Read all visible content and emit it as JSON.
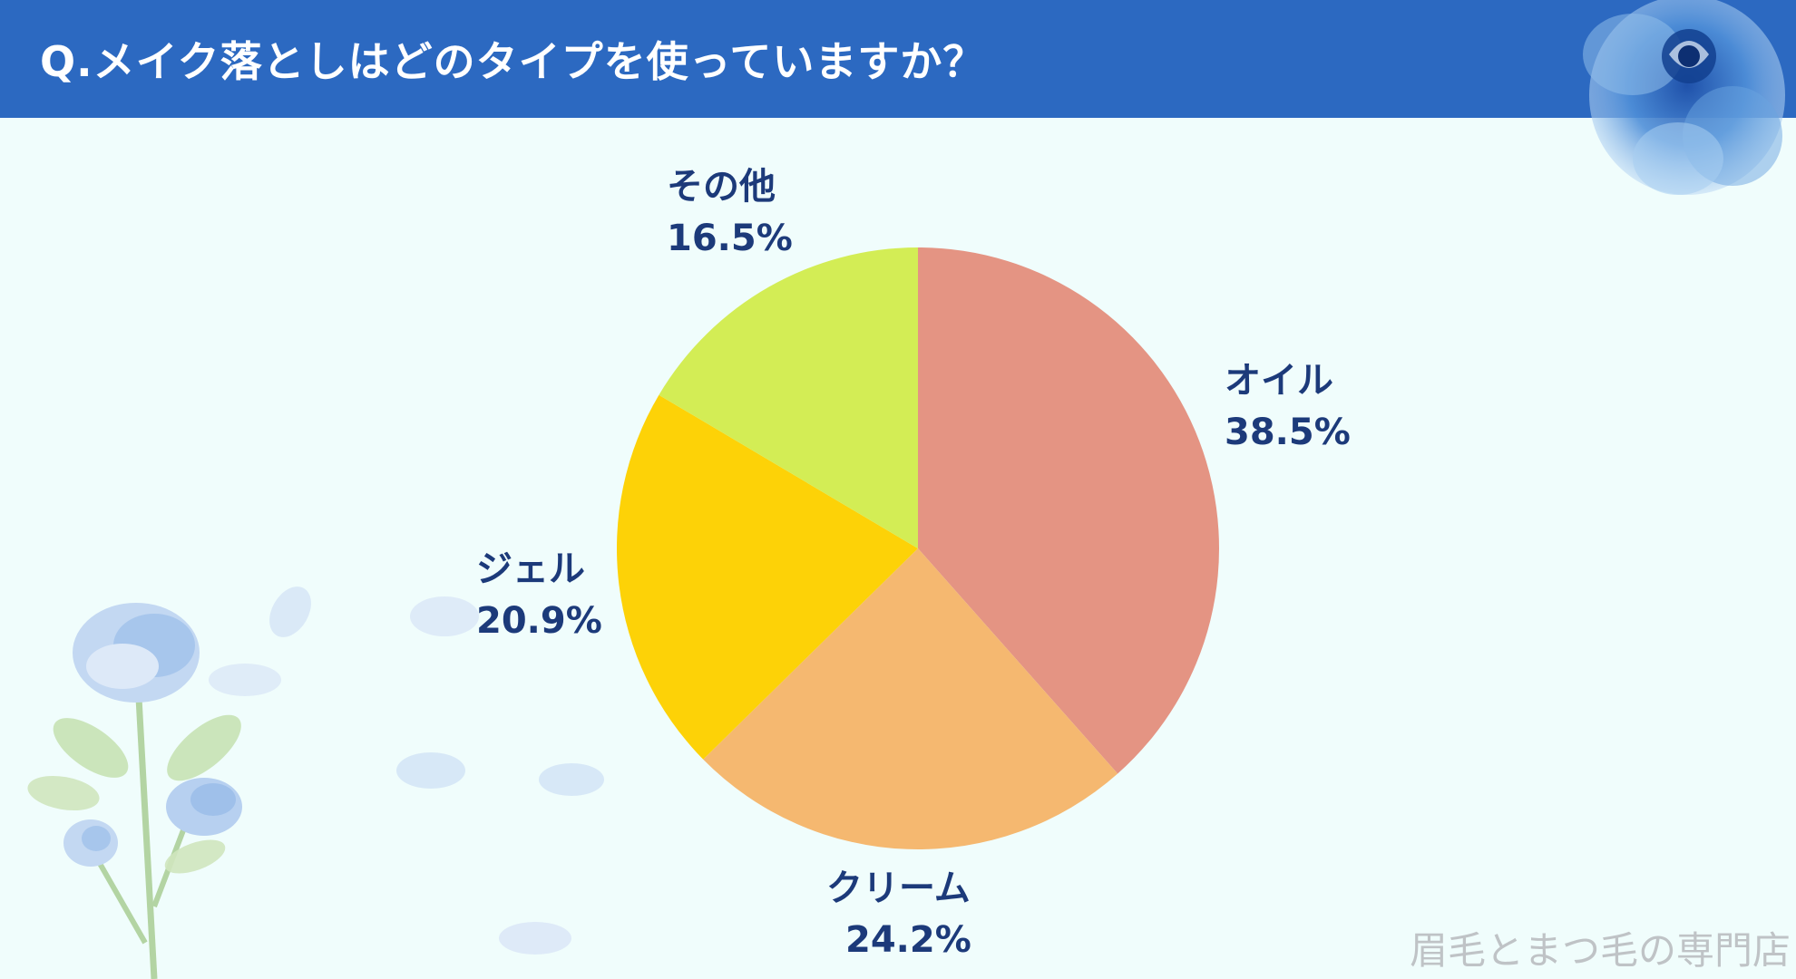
{
  "header": {
    "title": "Q.メイク落としはどのタイプを使っていますか？"
  },
  "chart_data": {
    "type": "pie",
    "categories": [
      "オイル",
      "クリーム",
      "ジェル",
      "その他"
    ],
    "values": [
      38.5,
      24.2,
      20.9,
      16.5
    ],
    "value_labels": [
      "38.5%",
      "24.2%",
      "20.9%",
      "16.5%"
    ],
    "colors": [
      "#e49483",
      "#f5b870",
      "#fdd207",
      "#d3ed55"
    ],
    "start_angle": "12 o'clock",
    "direction": "clockwise",
    "legend": "none",
    "label_color": "#1c3a7a"
  },
  "watermark": {
    "text": "眉毛とまつ毛の専門店"
  },
  "colors": {
    "header_bg": "#2c69c1",
    "page_bg": "#f0fdfc"
  },
  "decorations": {
    "top_right": "blue-rose-icon",
    "bottom_left": "blue-rose-stem-icon"
  }
}
